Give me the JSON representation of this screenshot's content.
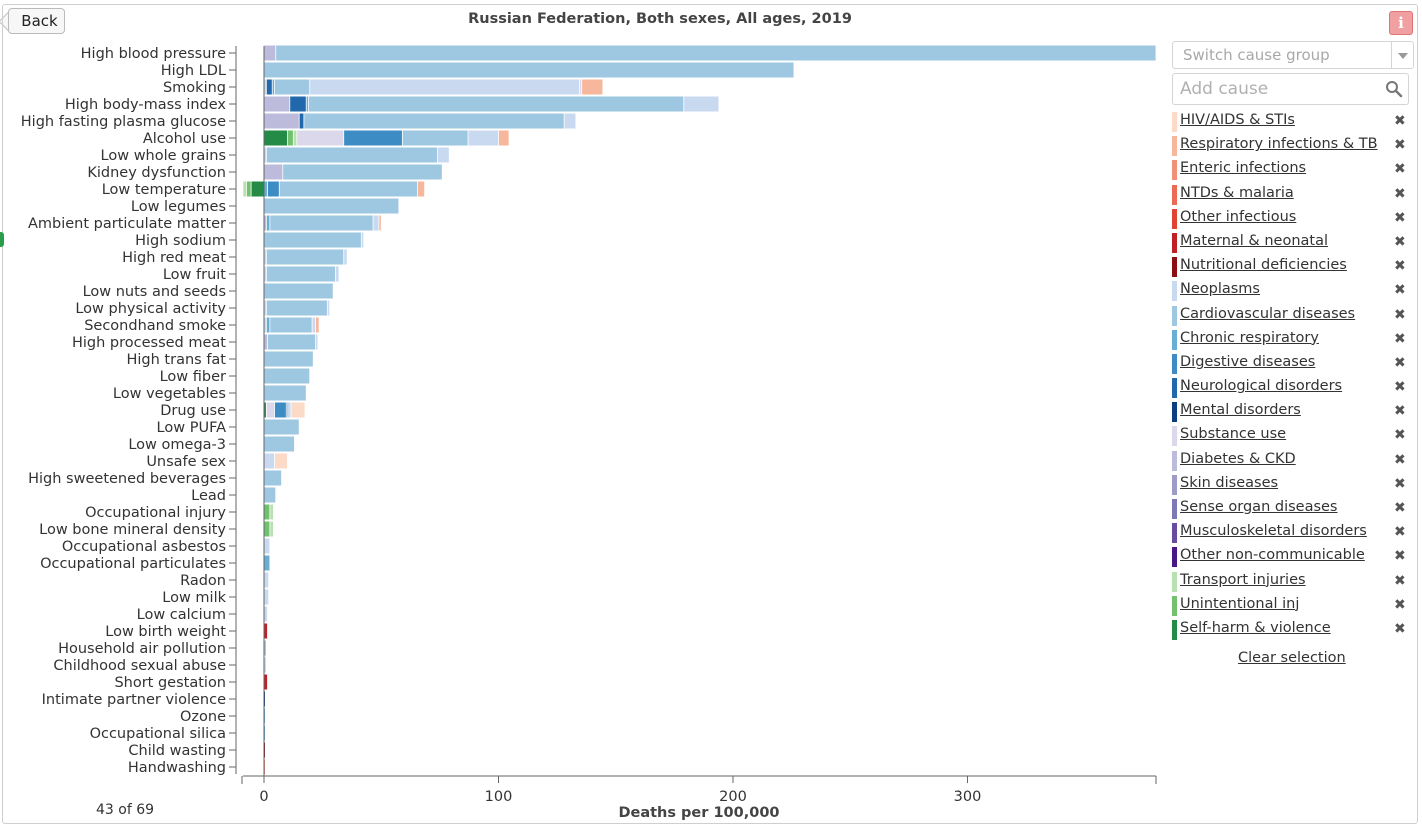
{
  "header": {
    "back_label": "Back",
    "title": "Russian Federation, Both sexes, All ages, 2019",
    "info_label": "i"
  },
  "footer": {
    "count_label": "43 of 69"
  },
  "sidebar": {
    "switch_group_placeholder": "Switch cause group",
    "add_cause_placeholder": "Add cause",
    "clear_label": "Clear selection",
    "causes": [
      {
        "label": "HIV/AIDS & STIs",
        "color": "#fbdac7"
      },
      {
        "label": "Respiratory infections & TB",
        "color": "#f7b79c"
      },
      {
        "label": "Enteric infections",
        "color": "#f1907a"
      },
      {
        "label": "NTDs & malaria",
        "color": "#ec6a55"
      },
      {
        "label": "Other infectious",
        "color": "#e04234"
      },
      {
        "label": "Maternal & neonatal",
        "color": "#c01f26"
      },
      {
        "label": "Nutritional deficiencies",
        "color": "#8c0d14"
      },
      {
        "label": "Neoplasms",
        "color": "#c9daf0"
      },
      {
        "label": "Cardiovascular diseases",
        "color": "#9ec7e2"
      },
      {
        "label": "Chronic respiratory",
        "color": "#6aaed6"
      },
      {
        "label": "Digestive diseases",
        "color": "#3d8dc4"
      },
      {
        "label": "Neurological disorders",
        "color": "#2268ad"
      },
      {
        "label": "Mental disorders",
        "color": "#0c3e80"
      },
      {
        "label": "Substance use",
        "color": "#dad8ea"
      },
      {
        "label": "Diabetes & CKD",
        "color": "#bcbbdc"
      },
      {
        "label": "Skin diseases",
        "color": "#9e9bc9"
      },
      {
        "label": "Sense organ diseases",
        "color": "#7f78b6"
      },
      {
        "label": "Musculoskeletal disorders",
        "color": "#6a4c9f"
      },
      {
        "label": "Other non-communicable",
        "color": "#4a1586"
      },
      {
        "label": "Transport injuries",
        "color": "#b8e0b0"
      },
      {
        "label": "Unintentional inj",
        "color": "#72c171"
      },
      {
        "label": "Self-harm & violence",
        "color": "#238b45"
      }
    ]
  },
  "chart_data": {
    "type": "bar",
    "orientation": "horizontal",
    "stacked": true,
    "xlabel": "Deaths per 100,000",
    "xlim": [
      -9,
      380
    ],
    "xticks": [
      0,
      100,
      200,
      300
    ],
    "categories": [
      "High blood pressure",
      "High LDL",
      "Smoking",
      "High body-mass index",
      "High fasting plasma glucose",
      "Alcohol use",
      "Low whole grains",
      "Kidney dysfunction",
      "Low temperature",
      "Low legumes",
      "Ambient particulate matter",
      "High sodium",
      "High red meat",
      "Low fruit",
      "Low nuts and seeds",
      "Low physical activity",
      "Secondhand smoke",
      "High processed meat",
      "High trans fat",
      "Low fiber",
      "Low vegetables",
      "Drug use",
      "Low PUFA",
      "Low omega-3",
      "Unsafe sex",
      "High sweetened beverages",
      "Lead",
      "Occupational injury",
      "Low bone mineral density",
      "Occupational asbestos",
      "Occupational particulates",
      "Radon",
      "Low milk",
      "Low calcium",
      "Low birth weight",
      "Household air pollution",
      "Childhood sexual abuse",
      "Short gestation",
      "Intimate partner violence",
      "Ozone",
      "Occupational silica",
      "Child wasting",
      "Handwashing"
    ],
    "segments": [
      [
        [
          "Diabetes & CKD",
          5
        ],
        [
          "Cardiovascular diseases",
          376
        ]
      ],
      [
        [
          "Cardiovascular diseases",
          226
        ]
      ],
      [
        [
          "Neoplasms",
          1
        ],
        [
          "Neurological disorders",
          2.5
        ],
        [
          "Chronic respiratory",
          1
        ],
        [
          "Cardiovascular diseases",
          15
        ],
        [
          "Neoplasms",
          115
        ],
        [
          "Substance use",
          1
        ],
        [
          "Respiratory infections & TB",
          9
        ]
      ],
      [
        [
          "Diabetes & CKD",
          11
        ],
        [
          "Neurological disorders",
          7
        ],
        [
          "Chronic respiratory",
          1
        ],
        [
          "Cardiovascular diseases",
          160
        ],
        [
          "Neoplasms",
          15
        ]
      ],
      [
        [
          "Diabetes & CKD",
          15
        ],
        [
          "Neurological disorders",
          2
        ],
        [
          "Cardiovascular diseases",
          111
        ],
        [
          "Neoplasms",
          5
        ]
      ],
      [
        [
          "Self-harm & violence",
          10
        ],
        [
          "Unintentional inj",
          2.5
        ],
        [
          "Transport injuries",
          1.5
        ],
        [
          "Substance use",
          20
        ],
        [
          "Digestive diseases",
          25
        ],
        [
          "Cardiovascular diseases",
          28
        ],
        [
          "Neoplasms",
          13
        ],
        [
          "Respiratory infections & TB",
          4.5
        ]
      ],
      [
        [
          "Neoplasms",
          1
        ],
        [
          "Cardiovascular diseases",
          73
        ],
        [
          "Neoplasms",
          5
        ]
      ],
      [
        [
          "Diabetes & CKD",
          8
        ],
        [
          "Cardiovascular diseases",
          68
        ]
      ],
      [
        [
          "Self-harm & violence",
          -5.5
        ],
        [
          "Unintentional inj",
          -2
        ],
        [
          "Transport injuries",
          -1.5
        ],
        [
          "Chronic respiratory",
          1.5
        ],
        [
          "Digestive diseases",
          5
        ],
        [
          "Cardiovascular diseases",
          59
        ],
        [
          "Respiratory infections & TB",
          3
        ]
      ],
      [
        [
          "Cardiovascular diseases",
          57.5
        ]
      ],
      [
        [
          "Diabetes & CKD",
          1
        ],
        [
          "Chronic respiratory",
          1.5
        ],
        [
          "Cardiovascular diseases",
          44
        ],
        [
          "Neoplasms",
          2.5
        ],
        [
          "Respiratory infections & TB",
          1
        ]
      ],
      [
        [
          "Cardiovascular diseases",
          41.5
        ],
        [
          "Neoplasms",
          1
        ]
      ],
      [
        [
          "Neoplasms",
          1
        ],
        [
          "Cardiovascular diseases",
          33
        ],
        [
          "Neoplasms",
          1.5
        ]
      ],
      [
        [
          "Neoplasms",
          1
        ],
        [
          "Cardiovascular diseases",
          29.5
        ],
        [
          "Neoplasms",
          1.5
        ]
      ],
      [
        [
          "Cardiovascular diseases",
          29.5
        ]
      ],
      [
        [
          "Neoplasms",
          1
        ],
        [
          "Cardiovascular diseases",
          26
        ],
        [
          "Neoplasms",
          1
        ]
      ],
      [
        [
          "Neoplasms",
          1
        ],
        [
          "Chronic respiratory",
          1.5
        ],
        [
          "Cardiovascular diseases",
          18
        ],
        [
          "Neoplasms",
          1.5
        ],
        [
          "Respiratory infections & TB",
          1.5
        ]
      ],
      [
        [
          "Diabetes & CKD",
          1.5
        ],
        [
          "Cardiovascular diseases",
          20.5
        ],
        [
          "Neoplasms",
          1
        ]
      ],
      [
        [
          "Cardiovascular diseases",
          21
        ]
      ],
      [
        [
          "Cardiovascular diseases",
          19.5
        ]
      ],
      [
        [
          "Cardiovascular diseases",
          18
        ]
      ],
      [
        [
          "Self-harm & violence",
          1
        ],
        [
          "Substance use",
          3.5
        ],
        [
          "Digestive diseases",
          5
        ],
        [
          "Neurological disorders",
          0.5
        ],
        [
          "Neoplasms",
          1.5
        ],
        [
          "HIV/AIDS & STIs",
          6
        ]
      ],
      [
        [
          "Cardiovascular diseases",
          15
        ]
      ],
      [
        [
          "Cardiovascular diseases",
          13
        ]
      ],
      [
        [
          "Neoplasms",
          4.5
        ],
        [
          "HIV/AIDS & STIs",
          5.5
        ]
      ],
      [
        [
          "Cardiovascular diseases",
          7.5
        ]
      ],
      [
        [
          "Cardiovascular diseases",
          5
        ]
      ],
      [
        [
          "Unintentional inj",
          2.5
        ],
        [
          "Transport injuries",
          1.5
        ]
      ],
      [
        [
          "Unintentional inj",
          2.5
        ],
        [
          "Transport injuries",
          1.5
        ]
      ],
      [
        [
          "Neoplasms",
          2.5
        ]
      ],
      [
        [
          "Chronic respiratory",
          2.5
        ]
      ],
      [
        [
          "Neoplasms",
          2
        ]
      ],
      [
        [
          "Neoplasms",
          2
        ]
      ],
      [
        [
          "Neoplasms",
          1.5
        ]
      ],
      [
        [
          "Maternal & neonatal",
          1.5
        ]
      ],
      [
        [
          "Cardiovascular diseases",
          1
        ]
      ],
      [
        [
          "Neoplasms",
          1
        ]
      ],
      [
        [
          "Maternal & neonatal",
          1.5
        ]
      ],
      [
        [
          "Mental disorders",
          0.4
        ]
      ],
      [
        [
          "Chronic respiratory",
          0.4
        ]
      ],
      [
        [
          "Chronic respiratory",
          0.2
        ]
      ],
      [
        [
          "Nutritional deficiencies",
          0.1
        ]
      ],
      [
        [
          "Enteric infections",
          0.1
        ]
      ]
    ]
  }
}
